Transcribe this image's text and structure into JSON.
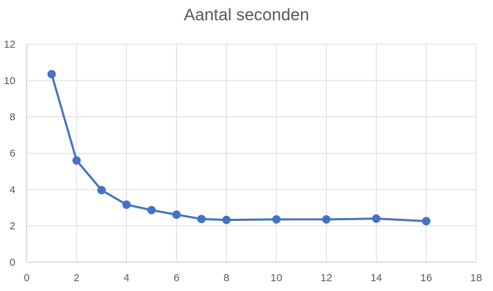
{
  "chart_data": {
    "type": "line",
    "title": "Aantal seconden",
    "xlabel": "",
    "ylabel": "",
    "xlim": [
      0,
      18
    ],
    "ylim": [
      0,
      12
    ],
    "xticks": [
      0,
      2,
      4,
      6,
      8,
      10,
      12,
      14,
      16,
      18
    ],
    "yticks": [
      0,
      2,
      4,
      6,
      8,
      10,
      12
    ],
    "grid": true,
    "legend": "none",
    "series": [
      {
        "color": "#4472C4",
        "marker": "circle",
        "x": [
          1,
          2,
          3,
          4,
          5,
          6,
          7,
          8,
          10,
          12,
          14,
          16
        ],
        "y": [
          10.35,
          5.6,
          3.97,
          3.17,
          2.87,
          2.62,
          2.38,
          2.33,
          2.36,
          2.36,
          2.4,
          2.26
        ]
      }
    ],
    "gridline_color": "#D9D9D9",
    "axis_line_color": "#BFBFBF"
  }
}
